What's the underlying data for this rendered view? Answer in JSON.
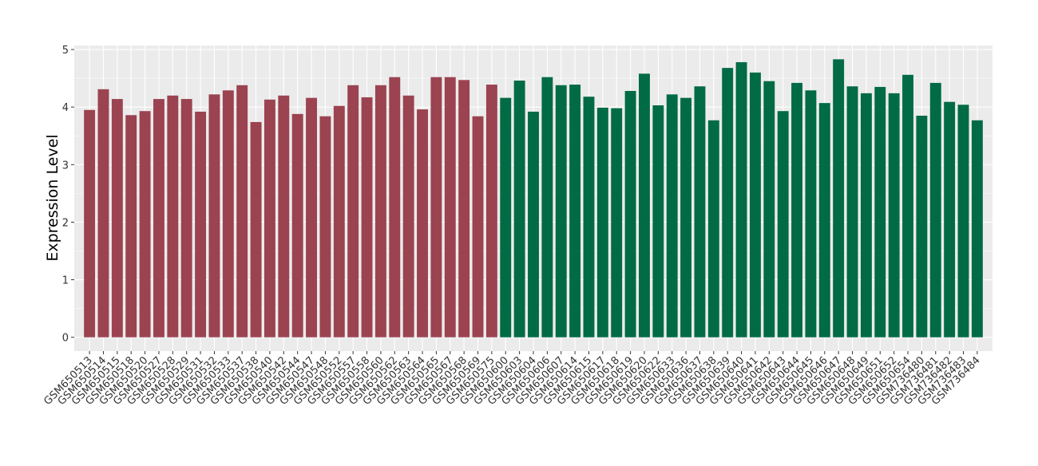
{
  "chart_data": {
    "type": "bar",
    "y_label": "Expression Level",
    "categories": [
      "GSM650513",
      "GSM650514",
      "GSM650515",
      "GSM650518",
      "GSM650520",
      "GSM650527",
      "GSM650528",
      "GSM650529",
      "GSM650531",
      "GSM650532",
      "GSM650533",
      "GSM650537",
      "GSM650538",
      "GSM650540",
      "GSM650542",
      "GSM650544",
      "GSM650547",
      "GSM650548",
      "GSM650552",
      "GSM650557",
      "GSM650558",
      "GSM650560",
      "GSM650562",
      "GSM650563",
      "GSM650564",
      "GSM650565",
      "GSM650567",
      "GSM650568",
      "GSM650569",
      "GSM650575",
      "GSM650600",
      "GSM650603",
      "GSM650604",
      "GSM650606",
      "GSM650607",
      "GSM650614",
      "GSM650615",
      "GSM650617",
      "GSM650618",
      "GSM650619",
      "GSM650620",
      "GSM650622",
      "GSM650633",
      "GSM650636",
      "GSM650637",
      "GSM650638",
      "GSM650639",
      "GSM650640",
      "GSM650641",
      "GSM650642",
      "GSM650643",
      "GSM650644",
      "GSM650645",
      "GSM650646",
      "GSM650647",
      "GSM650648",
      "GSM650649",
      "GSM650651",
      "GSM650652",
      "GSM650654",
      "GSM736480",
      "GSM736481",
      "GSM736482",
      "GSM736483",
      "GSM736484"
    ],
    "values": [
      3.95,
      4.31,
      4.14,
      3.86,
      3.93,
      4.14,
      4.2,
      4.14,
      3.92,
      4.22,
      4.29,
      4.38,
      3.74,
      4.13,
      4.2,
      3.88,
      4.16,
      3.84,
      4.02,
      4.38,
      4.17,
      4.38,
      4.52,
      4.2,
      3.96,
      4.52,
      4.52,
      4.47,
      3.84,
      4.39,
      4.16,
      4.46,
      3.92,
      4.52,
      4.38,
      4.39,
      4.18,
      3.99,
      3.98,
      4.28,
      4.58,
      4.03,
      4.22,
      4.16,
      4.36,
      3.77,
      4.68,
      4.78,
      4.6,
      4.45,
      3.93,
      4.42,
      4.29,
      4.07,
      4.83,
      4.36,
      4.24,
      4.35,
      4.24,
      4.56,
      3.85,
      4.42,
      4.09,
      4.04,
      3.77
    ],
    "colors": [
      "#9b4350",
      "#9b4350",
      "#9b4350",
      "#9b4350",
      "#9b4350",
      "#9b4350",
      "#9b4350",
      "#9b4350",
      "#9b4350",
      "#9b4350",
      "#9b4350",
      "#9b4350",
      "#9b4350",
      "#9b4350",
      "#9b4350",
      "#9b4350",
      "#9b4350",
      "#9b4350",
      "#9b4350",
      "#9b4350",
      "#9b4350",
      "#9b4350",
      "#9b4350",
      "#9b4350",
      "#9b4350",
      "#9b4350",
      "#9b4350",
      "#9b4350",
      "#9b4350",
      "#9b4350",
      "#006b45",
      "#006b45",
      "#006b45",
      "#006b45",
      "#006b45",
      "#006b45",
      "#006b45",
      "#006b45",
      "#006b45",
      "#006b45",
      "#006b45",
      "#006b45",
      "#006b45",
      "#006b45",
      "#006b45",
      "#006b45",
      "#006b45",
      "#006b45",
      "#006b45",
      "#006b45",
      "#006b45",
      "#006b45",
      "#006b45",
      "#006b45",
      "#006b45",
      "#006b45",
      "#006b45",
      "#006b45",
      "#006b45",
      "#006b45",
      "#006b45",
      "#006b45",
      "#006b45",
      "#006b45",
      "#006b45"
    ],
    "ylim": [
      -0.24,
      5.07
    ],
    "yticks": [
      0,
      1,
      2,
      3,
      4,
      5
    ],
    "grid": true
  }
}
